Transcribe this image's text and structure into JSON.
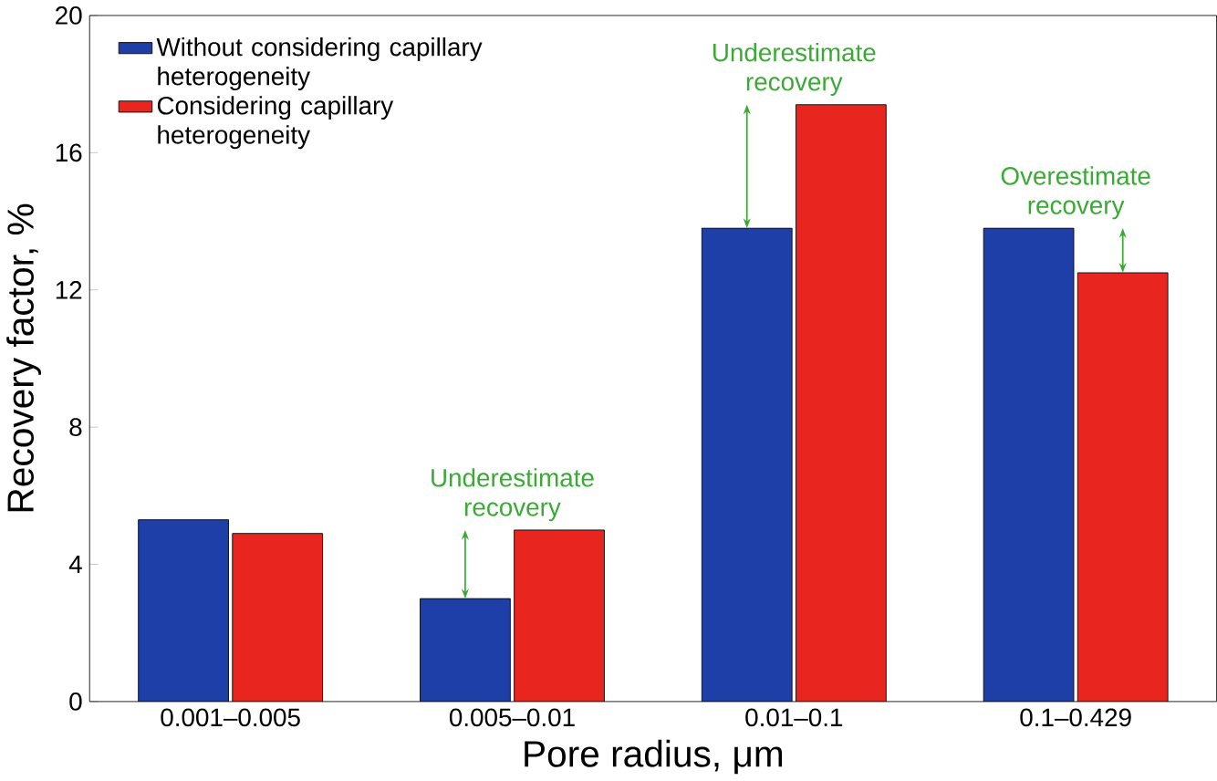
{
  "chart_data": {
    "type": "bar",
    "xlabel": "Pore radius, μm",
    "ylabel": "Recovery factor, %",
    "categories": [
      "0.001–0.005",
      "0.005–0.01",
      "0.01–0.1",
      "0.1–0.429"
    ],
    "series": [
      {
        "name": "Without considering capillary heterogeneity",
        "color": "#1f3fa8",
        "values": [
          5.3,
          3.0,
          13.8,
          13.8
        ]
      },
      {
        "name": "Considering capillary heterogeneity",
        "color": "#e8251f",
        "values": [
          4.9,
          5.0,
          17.4,
          12.5
        ]
      }
    ],
    "ylim": [
      0,
      20
    ],
    "yticks": [
      0,
      4,
      8,
      12,
      16,
      20
    ],
    "legend": "top left",
    "annotations": [
      {
        "text": "Underestimate recovery",
        "x": "0.005–0.01",
        "y": 5.0
      },
      {
        "text": "Underestimate recovery",
        "x": "0.01–0.1",
        "y": 17.4
      },
      {
        "text": "Overestimate recovery",
        "x": "0.1–0.429",
        "y": 13.8
      }
    ]
  }
}
